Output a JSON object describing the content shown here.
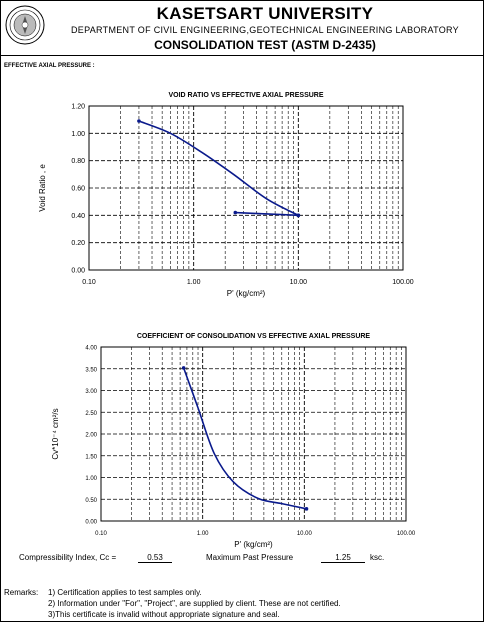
{
  "header": {
    "university": "KASETSART UNIVERSITY",
    "department": "DEPARTMENT OF CIVIL ENGINEERING,GEOTECHNICAL ENGINEERING LABORATORY",
    "test_title": "CONSOLIDATION TEST (ASTM D-2435)",
    "seal_icon": "university-seal-icon"
  },
  "effective_axial_label": "EFFECTIVE AXIAL PRESSURE :",
  "chart_data": [
    {
      "type": "line",
      "title": "VOID RATIO VS EFFECTIVE AXIAL PRESSURE",
      "xlabel": "P' (kg/cm²)",
      "ylabel": "Void Ratio , e",
      "x_scale": "log",
      "xlim": [
        0.1,
        100
      ],
      "ylim": [
        0,
        1.2
      ],
      "x_ticks": [
        "0.10",
        "1.00",
        "10.00",
        "100.00"
      ],
      "y_ticks": [
        "0.00",
        "0.20",
        "0.40",
        "0.60",
        "0.80",
        "1.00",
        "1.20"
      ],
      "grid": true,
      "series": [
        {
          "x": [
            0.3,
            0.6,
            1.2,
            2.4,
            5.0,
            10.0
          ],
          "y": [
            1.09,
            1.0,
            0.86,
            0.7,
            0.52,
            0.4
          ]
        },
        {
          "x": [
            10.0,
            5.0,
            2.5
          ],
          "y": [
            0.4,
            0.41,
            0.42
          ]
        }
      ],
      "color": "#0a1a8c"
    },
    {
      "type": "line",
      "title": "COEFFICIENT OF CONSOLIDATION VS EFFECTIVE AXIAL PRESSURE",
      "xlabel": "P' (kg/cm²)",
      "ylabel": "Cv*10⁻⁴ cm²/s",
      "x_scale": "log",
      "xlim": [
        0.1,
        100
      ],
      "ylim": [
        0,
        4
      ],
      "x_ticks": [
        "0.10",
        "1.00",
        "10.00",
        "100.00"
      ],
      "y_ticks": [
        "0.00",
        "0.50",
        "1.00",
        "1.50",
        "2.00",
        "2.50",
        "3.00",
        "3.50",
        "4.00"
      ],
      "grid": true,
      "series": [
        {
          "x": [
            0.65,
            0.9,
            1.3,
            2.0,
            3.5,
            6.0,
            10.5
          ],
          "y": [
            3.52,
            2.6,
            1.55,
            0.9,
            0.52,
            0.4,
            0.28
          ]
        }
      ],
      "color": "#0a1a8c"
    }
  ],
  "stats": {
    "cc_label": "Compressibility Index, Cc =",
    "cc_value": "0.53",
    "mpp_label": "Maximum Past Pressure",
    "mpp_value": "1.25",
    "mpp_unit": "ksc."
  },
  "remarks": {
    "label": "Remarks:",
    "items": [
      "1) Certification applies to test samples only.",
      "2) Information under \"For\", \"Project\", are supplied by client. These are not certified.",
      "3)This certificate is invalid without appropriate signature and seal."
    ]
  }
}
